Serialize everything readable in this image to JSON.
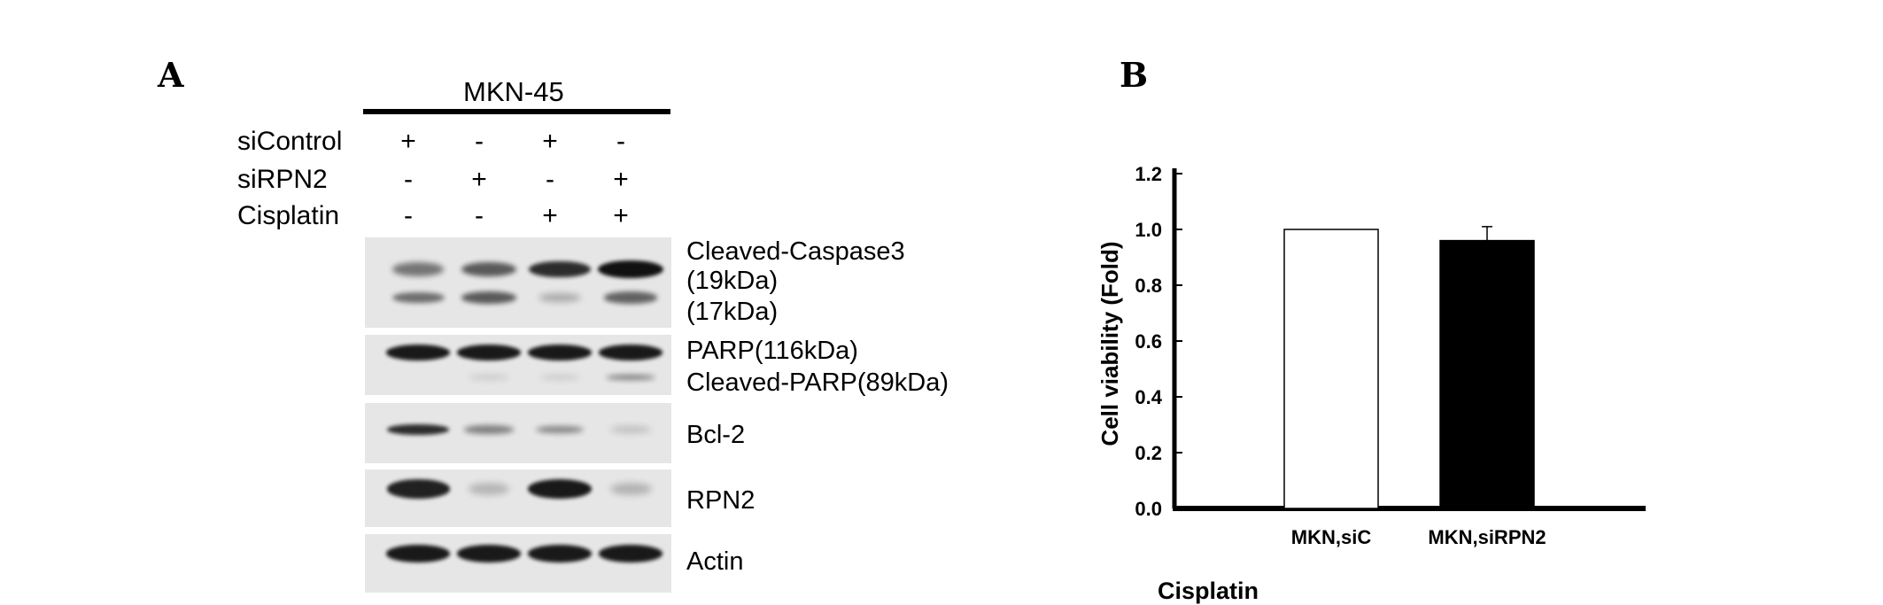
{
  "panel_a": {
    "letter": "A",
    "cell_line": "MKN-45",
    "conditions": [
      {
        "label": "siControl",
        "signs": [
          "+",
          "-",
          "+",
          "-"
        ]
      },
      {
        "label": "siRPN2",
        "signs": [
          "-",
          "+",
          "-",
          "+"
        ]
      },
      {
        "label": "Cisplatin",
        "signs": [
          "-",
          "-",
          "+",
          "+"
        ]
      }
    ],
    "blot_labels": {
      "caspase_title": "Cleaved-Caspase3",
      "caspase_19": "(19kDa)",
      "caspase_17": "(17kDa)",
      "parp": "PARP(116kDa)",
      "cleaved_parp": "Cleaved-PARP(89kDa)",
      "bcl2": "Bcl-2",
      "rpn2": "RPN2",
      "actin": "Actin"
    },
    "band_intensity": {
      "caspase_19kDa": [
        0.45,
        0.6,
        0.85,
        1.0
      ],
      "caspase_17kDa": [
        0.5,
        0.6,
        0.15,
        0.55
      ],
      "parp_116kDa": [
        0.95,
        0.95,
        0.95,
        0.95
      ],
      "cleaved_parp_89kDa": [
        0.0,
        0.05,
        0.05,
        0.4
      ],
      "bcl2": [
        0.85,
        0.4,
        0.35,
        0.05
      ],
      "rpn2": [
        0.9,
        0.08,
        0.95,
        0.1
      ],
      "actin": [
        0.95,
        0.95,
        0.95,
        0.95
      ]
    }
  },
  "panel_b": {
    "letter": "B"
  },
  "chart_data": {
    "type": "bar",
    "categories": [
      "MKN,siC",
      "MKN,siRPN2"
    ],
    "values": [
      1.0,
      0.96
    ],
    "errors": [
      0.0,
      0.05
    ],
    "bar_colors": [
      "#ffffff",
      "#000000"
    ],
    "xlabel": "Cisplatin",
    "ylabel": "Cell viability (Fold)",
    "ylim": [
      0.0,
      1.2
    ],
    "yticks": [
      "0.0",
      "0.2",
      "0.4",
      "0.6",
      "0.8",
      "1.0",
      "1.2"
    ],
    "grid": false,
    "legend": "none"
  }
}
